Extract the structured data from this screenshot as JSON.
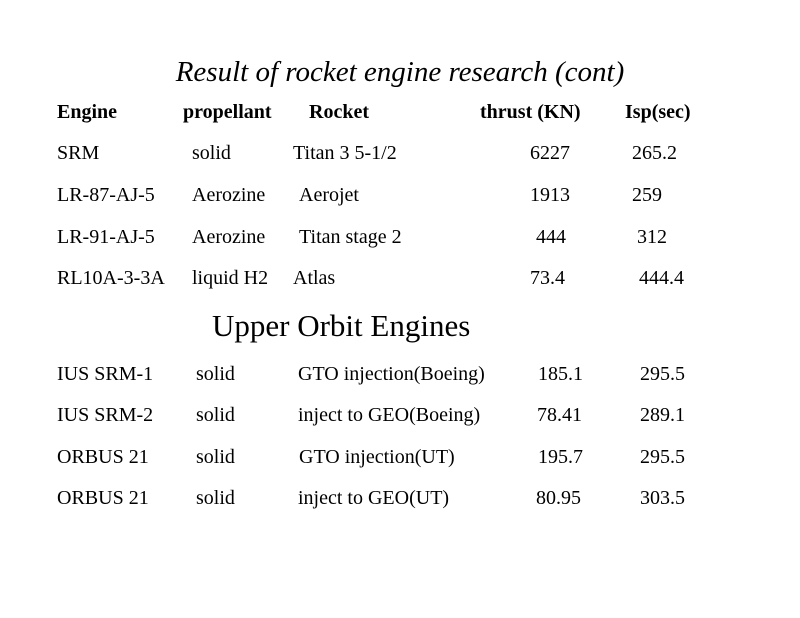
{
  "title": "Result of rocket engine research (cont)",
  "headers": [
    "Engine",
    "propellant",
    "Rocket",
    "thrust (KN)",
    "Isp(sec)"
  ],
  "rows": [
    [
      "SRM",
      "solid",
      "Titan 3 5-1/2",
      "6227",
      "265.2"
    ],
    [
      "LR-87-AJ-5",
      "Aerozine",
      "Aerojet",
      "1913",
      "259"
    ],
    [
      "LR-91-AJ-5",
      "Aerozine",
      "Titan stage 2",
      "444",
      "312"
    ],
    [
      "RL10A-3-3A",
      "liquid H2",
      "Atlas",
      "73.4",
      "444.4"
    ]
  ],
  "subtitle": "Upper Orbit Engines",
  "upper_rows": [
    [
      "IUS SRM-1",
      "solid",
      "GTO injection(Boeing)",
      "185.1",
      "295.5"
    ],
    [
      "IUS SRM-2",
      "solid",
      "inject to GEO(Boeing)",
      "78.41",
      "289.1"
    ],
    [
      "ORBUS 21",
      "solid",
      "GTO injection(UT)",
      "195.7",
      "295.5"
    ],
    [
      "ORBUS 21",
      "solid",
      "inject to GEO(UT)",
      "80.95",
      "303.5"
    ]
  ]
}
